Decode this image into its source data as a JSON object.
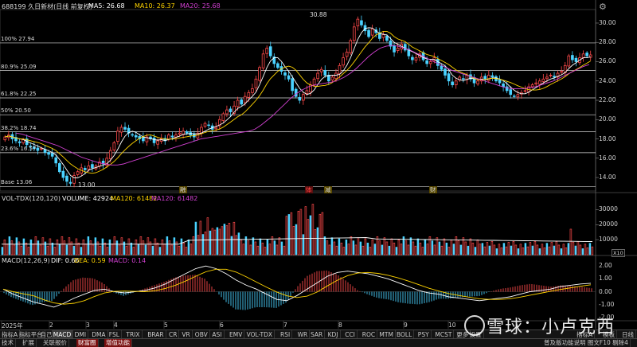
{
  "header": {
    "stock": "688199 久日新材(日线 前复权)",
    "ma5": "MA5: 26.68",
    "ma10": "MA10: 26.37",
    "ma20": "MA20: 25.68",
    "high_label": "30.88",
    "low_label": "13.00"
  },
  "levels": [
    {
      "label": "100% 27.94",
      "value": 27.94
    },
    {
      "label": "80.9% 25.09",
      "value": 25.09
    },
    {
      "label": "61.8% 22.25",
      "value": 22.25
    },
    {
      "label": "50% 20.50",
      "value": 20.5
    },
    {
      "label": "38.2% 18.74",
      "value": 18.74
    },
    {
      "label": "23.6% 16.57",
      "value": 16.57
    },
    {
      "label": "Base 13.06",
      "value": 13.06
    }
  ],
  "price_axis": [
    "30.00",
    "28.00",
    "26.00",
    "24.00",
    "22.00",
    "20.00",
    "18.00",
    "16.00",
    "14.00"
  ],
  "volume_header": {
    "name": "VOL-TDX(120,120)",
    "volume": "VOLUME: 42924",
    "ma1": "MA120: 61482",
    "ma2": "MA120: 61482"
  },
  "volume_axis": [
    "30000",
    "20000",
    "10000"
  ],
  "volume_unit": "X10",
  "macd_header": {
    "name": "MACD(12,26,9)",
    "dif": "DIF: 0.66",
    "dea": "DEA: 0.59",
    "macd": "MACD: 0.14"
  },
  "macd_axis": [
    "2.00",
    "1.00",
    "0.00",
    "-1.00",
    "-2.00"
  ],
  "events": [
    {
      "label": "融",
      "color": "#ffd400"
    },
    {
      "label": "体",
      "color": "#ff4040"
    },
    {
      "label": "减",
      "color": "#ffd400"
    },
    {
      "label": "财",
      "color": "#ffd400"
    }
  ],
  "months": [
    "2025年",
    "2",
    "3",
    "4",
    "5",
    "6",
    "7",
    "8",
    "9",
    "10",
    "11",
    "12"
  ],
  "tabs_row1": [
    "指标A",
    "指标平台",
    "自己",
    "MACD",
    "DMI",
    "DMA",
    "FSL",
    "TRIX",
    "BRAR",
    "CR",
    "VR",
    "OBV",
    "ASI",
    "EMV",
    "VOL-TDX",
    "RSI",
    "WR",
    "SAR",
    "KDJ",
    "CCI",
    "ROC",
    "MTM",
    "BOLL",
    "PSY",
    "MCST",
    "更多",
    "设置"
  ],
  "tabs_row1_right": [
    "指标A",
    "模板",
    "日线"
  ],
  "tabs_row2": [
    "技术",
    "扩展",
    "关联报价",
    "财富圈",
    "增值功能"
  ],
  "tabs_row2_right": "普及版功能说明  图文F10 剔除4",
  "watermark": "雪球：小卢克西",
  "colors": {
    "up": "#ff4a4a",
    "down": "#4ad2ff",
    "ma5": "#ffffff",
    "ma10": "#ffd400",
    "ma20": "#d040d0"
  },
  "chart_data": [
    {
      "type": "candlestick",
      "title": "688199 久日新材(日线 前复权)",
      "ylim": [
        12.6,
        31.4
      ],
      "high": 30.88,
      "low": 13.0,
      "close_series": [
        18.2,
        18.4,
        18.0,
        17.8,
        17.6,
        17.9,
        17.4,
        17.2,
        17.0,
        16.8,
        17.0,
        16.6,
        16.4,
        16.2,
        15.5,
        14.6,
        14.0,
        13.6,
        13.4,
        14.2,
        14.6,
        15.0,
        14.8,
        15.2,
        15.0,
        15.2,
        15.6,
        15.4,
        16.0,
        16.8,
        17.6,
        18.8,
        19.2,
        19.0,
        18.6,
        18.4,
        18.2,
        18.0,
        17.8,
        18.2,
        18.0,
        17.6,
        17.8,
        18.0,
        17.8,
        18.4,
        18.2,
        18.4,
        18.6,
        18.8,
        18.6,
        18.4,
        18.2,
        18.6,
        19.2,
        19.6,
        19.4,
        19.0,
        19.2,
        20.0,
        20.6,
        21.0,
        20.8,
        21.4,
        22.0,
        21.6,
        22.4,
        22.8,
        23.2,
        24.2,
        25.4,
        26.8,
        27.4,
        26.6,
        25.8,
        25.4,
        25.0,
        24.6,
        24.2,
        23.0,
        22.4,
        22.0,
        22.6,
        23.0,
        23.6,
        24.2,
        24.8,
        25.2,
        24.6,
        24.0,
        24.4,
        24.8,
        25.6,
        26.4,
        27.0,
        28.2,
        29.6,
        30.4,
        29.8,
        29.2,
        28.6,
        29.4,
        29.0,
        28.4,
        28.8,
        28.2,
        27.6,
        27.0,
        27.4,
        27.8,
        27.2,
        26.6,
        26.2,
        26.4,
        26.8,
        26.2,
        25.8,
        26.0,
        26.4,
        25.6,
        25.2,
        24.6,
        24.0,
        23.6,
        24.0,
        24.4,
        24.2,
        24.6,
        24.2,
        23.8,
        24.0,
        24.4,
        24.2,
        24.6,
        24.4,
        24.0,
        23.8,
        23.4,
        23.0,
        22.6,
        22.4,
        22.6,
        22.8,
        23.0,
        23.4,
        23.6,
        23.8,
        24.0,
        24.2,
        24.4,
        24.6,
        24.4,
        24.8,
        25.0,
        25.6,
        26.6,
        26.2,
        26.0,
        26.4,
        26.8,
        26.6,
        26.7
      ],
      "ma20_series": [
        18.6,
        18.5,
        18.3,
        18.1,
        17.9,
        17.7,
        17.5,
        17.3,
        17.0,
        16.7,
        16.4,
        16.1,
        15.9,
        15.7,
        15.5,
        15.4,
        15.3,
        15.3,
        15.4,
        15.6,
        15.8,
        16.0,
        16.2,
        16.4,
        16.6,
        16.8,
        17.0,
        17.2,
        17.4,
        17.6,
        17.8,
        18.0,
        18.1,
        18.2,
        18.3,
        18.4,
        18.5,
        18.6,
        18.7,
        18.8,
        19.0,
        19.4,
        19.9,
        20.4,
        21.0,
        21.6,
        22.2,
        22.7,
        23.1,
        23.4,
        23.6,
        23.7,
        23.8,
        23.9,
        24.1,
        24.4,
        24.8,
        25.3,
        25.9,
        26.5,
        27.0,
        27.4,
        27.6,
        27.7,
        27.6,
        27.4,
        27.2,
        26.9,
        26.6,
        26.3,
        26.0,
        25.7,
        25.4,
        25.1,
        24.9,
        24.7,
        24.5,
        24.3,
        24.1,
        23.9,
        23.7,
        23.5,
        23.3,
        23.2,
        23.2,
        23.2,
        23.3,
        23.4,
        23.6,
        23.8,
        24.0,
        24.3,
        24.6,
        24.9,
        25.2,
        25.5,
        25.7
      ]
    },
    {
      "type": "bar",
      "title": "VOL-TDX(120,120)",
      "ylim": [
        0,
        35000
      ],
      "last_volume": 42924,
      "ma120": 61482
    },
    {
      "type": "macd",
      "title": "MACD(12,26,9)",
      "ylim": [
        -2.2,
        2.2
      ],
      "dif": 0.66,
      "dea": 0.59,
      "macd": 0.14,
      "dif_series": [
        0.2,
        -0.2,
        -0.5,
        -0.8,
        -1.0,
        -1.2,
        -0.9,
        -0.5,
        -0.2,
        0.1,
        0.2,
        0.0,
        -0.1,
        0.0,
        0.1,
        0.3,
        0.6,
        1.0,
        1.4,
        1.8,
        2.0,
        1.8,
        1.4,
        0.9,
        0.5,
        0.2,
        -0.2,
        -0.6,
        -0.7,
        -0.3,
        0.2,
        0.7,
        1.2,
        1.5,
        1.6,
        1.5,
        1.4,
        1.2,
        1.0,
        0.7,
        0.4,
        0.1,
        -0.1,
        -0.2,
        -0.4,
        -0.5,
        -0.6,
        -0.7,
        -0.6,
        -0.5,
        -0.4,
        -0.2,
        0.0,
        0.1,
        0.2,
        0.4,
        0.5,
        0.6,
        0.66
      ]
    }
  ]
}
